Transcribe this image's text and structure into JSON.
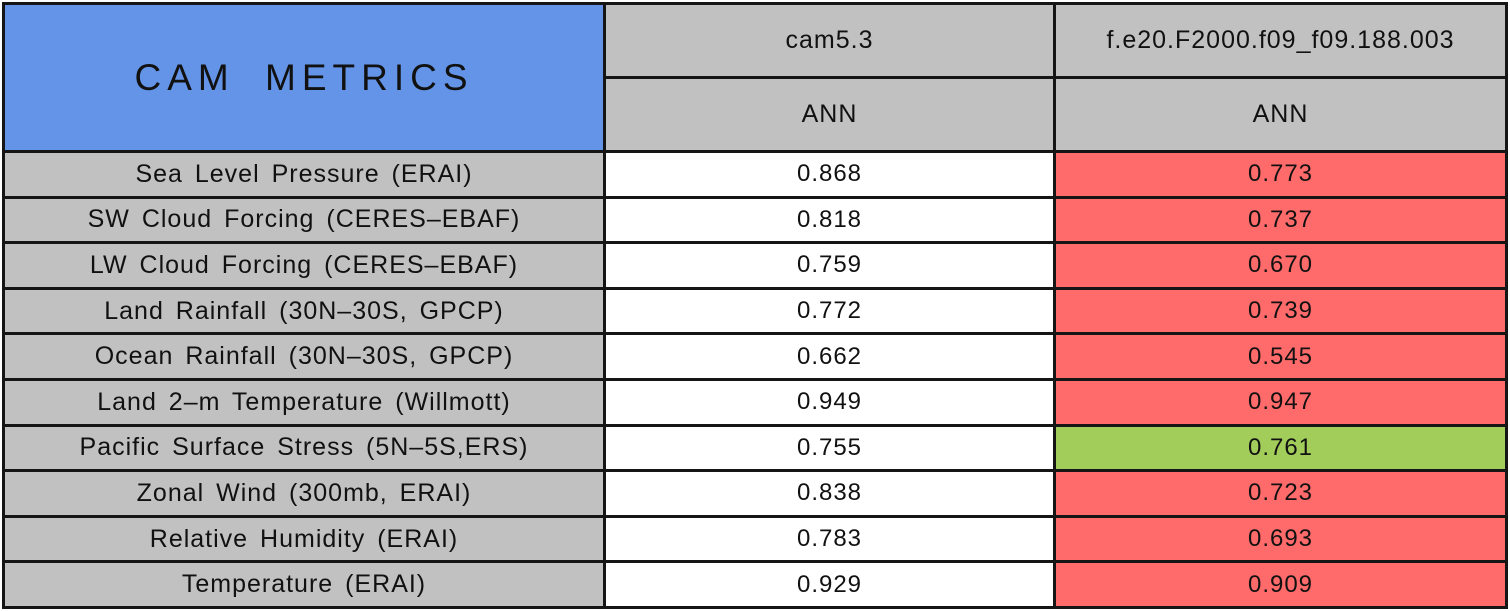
{
  "table": {
    "title": "CAM METRICS",
    "col_headers": {
      "model1": "cam5.3",
      "model1_season": "ANN",
      "model2": "f.e20.F2000.f09_f09.188.003",
      "model2_season": "ANN"
    },
    "rows": [
      {
        "metric": "Sea Level Pressure (ERAI)",
        "cam53": "0.868",
        "exp": "0.773",
        "status": "worse"
      },
      {
        "metric": "SW Cloud Forcing (CERES–EBAF)",
        "cam53": "0.818",
        "exp": "0.737",
        "status": "worse"
      },
      {
        "metric": "LW Cloud Forcing (CERES–EBAF)",
        "cam53": "0.759",
        "exp": "0.670",
        "status": "worse"
      },
      {
        "metric": "Land Rainfall (30N–30S, GPCP)",
        "cam53": "0.772",
        "exp": "0.739",
        "status": "worse"
      },
      {
        "metric": "Ocean Rainfall (30N–30S, GPCP)",
        "cam53": "0.662",
        "exp": "0.545",
        "status": "worse"
      },
      {
        "metric": "Land 2–m Temperature (Willmott)",
        "cam53": "0.949",
        "exp": "0.947",
        "status": "worse"
      },
      {
        "metric": "Pacific Surface Stress (5N–5S,ERS)",
        "cam53": "0.755",
        "exp": "0.761",
        "status": "better"
      },
      {
        "metric": "Zonal Wind (300mb, ERAI)",
        "cam53": "0.838",
        "exp": "0.723",
        "status": "worse"
      },
      {
        "metric": "Relative Humidity (ERAI)",
        "cam53": "0.783",
        "exp": "0.693",
        "status": "worse"
      },
      {
        "metric": "Temperature (ERAI)",
        "cam53": "0.929",
        "exp": "0.909",
        "status": "worse"
      }
    ],
    "colors": {
      "title_background": "#6494E8",
      "header_background": "#C1C1C1",
      "worse_cell": "#FF6B6B",
      "better_cell": "#A2CD5A",
      "grid_line": "#151515"
    }
  },
  "chart_data": {
    "type": "table",
    "title": "CAM METRICS",
    "categories": [
      "Sea Level Pressure (ERAI)",
      "SW Cloud Forcing (CERES–EBAF)",
      "LW Cloud Forcing (CERES–EBAF)",
      "Land Rainfall (30N–30S, GPCP)",
      "Ocean Rainfall (30N–30S, GPCP)",
      "Land 2–m Temperature (Willmott)",
      "Pacific Surface Stress (5N–5S,ERS)",
      "Zonal Wind (300mb, ERAI)",
      "Relative Humidity (ERAI)",
      "Temperature (ERAI)"
    ],
    "series": [
      {
        "name": "cam5.3 (ANN)",
        "values": [
          0.868,
          0.818,
          0.759,
          0.772,
          0.662,
          0.949,
          0.755,
          0.838,
          0.783,
          0.929
        ]
      },
      {
        "name": "f.e20.F2000.f09_f09.188.003 (ANN)",
        "values": [
          0.773,
          0.737,
          0.67,
          0.739,
          0.545,
          0.947,
          0.761,
          0.723,
          0.693,
          0.909
        ]
      }
    ],
    "highlight_rule": "second series cell red when worse than cam5.3, green when better",
    "highlights": [
      "worse",
      "worse",
      "worse",
      "worse",
      "worse",
      "worse",
      "better",
      "worse",
      "worse",
      "worse"
    ]
  }
}
